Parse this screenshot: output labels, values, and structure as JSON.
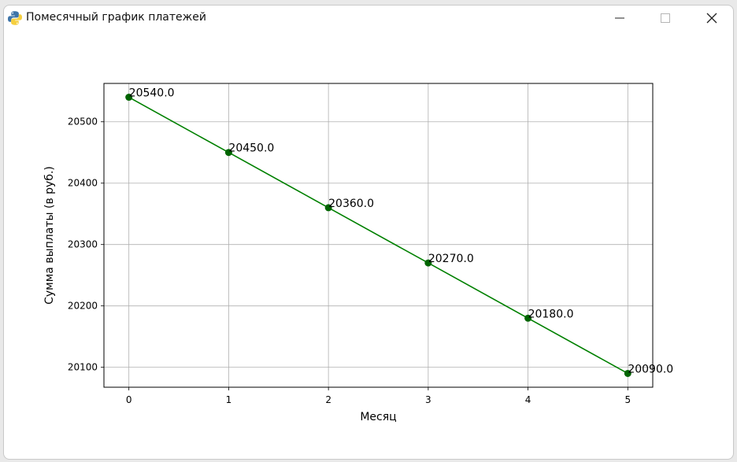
{
  "window": {
    "title": "Помесячный график платежей",
    "icon": "python-icon",
    "controls": [
      "minimize-icon",
      "maximize-icon",
      "close-icon"
    ]
  },
  "chart_data": {
    "type": "line",
    "title": "",
    "xlabel": "Месяц",
    "ylabel": "Сумма выплаты (в руб.)",
    "x": [
      0,
      1,
      2,
      3,
      4,
      5
    ],
    "values": [
      20540.0,
      20450.0,
      20360.0,
      20270.0,
      20180.0,
      20090.0
    ],
    "point_labels": [
      "20540.0",
      "20450.0",
      "20360.0",
      "20270.0",
      "20180.0",
      "20090.0"
    ],
    "xticks": [
      "0",
      "1",
      "2",
      "3",
      "4",
      "5"
    ],
    "yticks": [
      "20100",
      "20200",
      "20300",
      "20400",
      "20500"
    ],
    "xlim": [
      -0.25,
      5.25
    ],
    "ylim": [
      20067.5,
      20562.5
    ],
    "grid": true,
    "line_color": "#008000",
    "marker_color": "#006400"
  }
}
